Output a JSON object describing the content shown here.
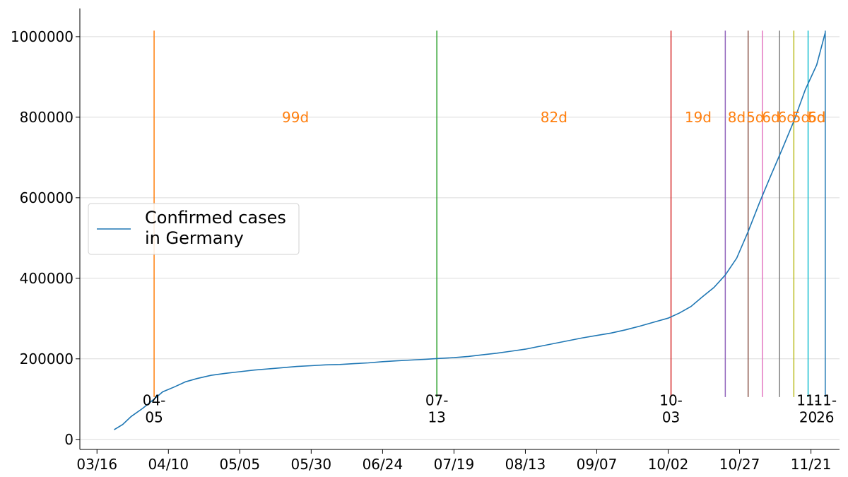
{
  "chart_data": {
    "type": "line",
    "title": "",
    "xlabel": "",
    "ylabel": "",
    "grid": {
      "x": false,
      "y": true
    },
    "legend": {
      "placement": "center-left",
      "entries": [
        "Confirmed cases\nin Germany"
      ]
    },
    "x_tick_labels": [
      "03/16",
      "04/10",
      "05/05",
      "05/30",
      "06/24",
      "07/19",
      "08/13",
      "09/07",
      "10/02",
      "10/27",
      "11/21"
    ],
    "x_range": [
      "2020-03-10",
      "2020-12-01"
    ],
    "y_ticks": [
      0,
      200000,
      400000,
      600000,
      800000,
      1000000
    ],
    "y_tick_labels": [
      "0",
      "200000",
      "400000",
      "600000",
      "800000",
      "1000000"
    ],
    "ylim": [
      -25000,
      1070000
    ],
    "series": [
      {
        "name": "Confirmed cases\nin Germany",
        "color": "#1f77b4",
        "x": [
          "2020-03-22",
          "2020-03-25",
          "2020-03-28",
          "2020-04-01",
          "2020-04-05",
          "2020-04-08",
          "2020-04-12",
          "2020-04-16",
          "2020-04-20",
          "2020-04-25",
          "2020-04-30",
          "2020-05-05",
          "2020-05-10",
          "2020-05-15",
          "2020-05-20",
          "2020-05-25",
          "2020-05-30",
          "2020-06-04",
          "2020-06-09",
          "2020-06-14",
          "2020-06-19",
          "2020-06-24",
          "2020-06-29",
          "2020-07-04",
          "2020-07-09",
          "2020-07-14",
          "2020-07-19",
          "2020-07-24",
          "2020-07-29",
          "2020-08-03",
          "2020-08-08",
          "2020-08-13",
          "2020-08-18",
          "2020-08-23",
          "2020-08-28",
          "2020-09-02",
          "2020-09-07",
          "2020-09-12",
          "2020-09-17",
          "2020-09-22",
          "2020-09-27",
          "2020-10-02",
          "2020-10-06",
          "2020-10-10",
          "2020-10-14",
          "2020-10-18",
          "2020-10-22",
          "2020-10-26",
          "2020-10-30",
          "2020-11-03",
          "2020-11-07",
          "2020-11-11",
          "2020-11-15",
          "2020-11-19",
          "2020-11-23",
          "2020-11-26"
        ],
        "y": [
          24000,
          37000,
          57000,
          77000,
          100000,
          118000,
          130000,
          143000,
          151000,
          159000,
          164000,
          168000,
          172000,
          175000,
          178000,
          181000,
          183000,
          185000,
          186000,
          188000,
          190000,
          193000,
          195000,
          197000,
          199000,
          201000,
          203000,
          206000,
          210000,
          214000,
          219000,
          224000,
          231000,
          238000,
          245000,
          252000,
          258000,
          264000,
          272000,
          281000,
          291000,
          301000,
          314000,
          330000,
          354000,
          377000,
          408000,
          450000,
          516000,
          588000,
          656000,
          722000,
          790000,
          868000,
          930000,
          1010000
        ]
      }
    ],
    "markers": [
      {
        "date": "2020-04-05",
        "label": "04-\n05",
        "color": "#ff7f0e"
      },
      {
        "date": "2020-07-13",
        "label": "07-\n13",
        "color": "#2ca02c"
      },
      {
        "date": "2020-10-03",
        "label": "10-\n03",
        "color": "#d62728"
      },
      {
        "date": "2020-10-22",
        "label": "",
        "color": "#9467bd"
      },
      {
        "date": "2020-10-30",
        "label": "",
        "color": "#8c564b"
      },
      {
        "date": "2020-11-04",
        "label": "",
        "color": "#e377c2"
      },
      {
        "date": "2020-11-10",
        "label": "",
        "color": "#7f7f7f"
      },
      {
        "date": "2020-11-15",
        "label": "",
        "color": "#bcbd22"
      },
      {
        "date": "2020-11-20",
        "label": "11-\n20",
        "color": "#17becf"
      },
      {
        "date": "2020-11-26",
        "label": "11-\n26",
        "color": "#1f77b4"
      }
    ],
    "intervals": [
      {
        "label": "99d",
        "color": "#ff7f0e"
      },
      {
        "label": "82d",
        "color": "#ff7f0e"
      },
      {
        "label": "19d",
        "color": "#ff7f0e"
      },
      {
        "label": "8d",
        "color": "#ff7f0e"
      },
      {
        "label": "5d",
        "color": "#ff7f0e"
      },
      {
        "label": "6d",
        "color": "#ff7f0e"
      },
      {
        "label": "6d",
        "color": "#ff7f0e"
      },
      {
        "label": "5d",
        "color": "#ff7f0e"
      },
      {
        "label": "5d",
        "color": "#ff7f0e"
      },
      {
        "label": "6d",
        "color": "#ff7f0e"
      }
    ]
  }
}
